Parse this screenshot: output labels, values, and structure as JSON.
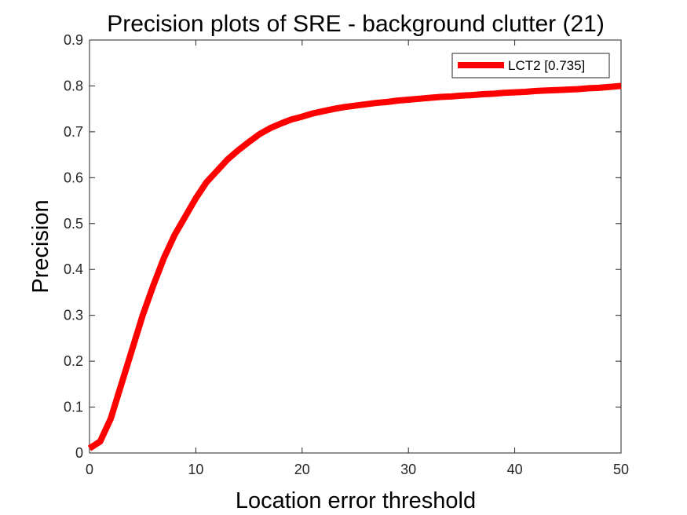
{
  "chart_data": {
    "type": "line",
    "title": "Precision plots of SRE - background clutter (21)",
    "xlabel": "Location error threshold",
    "ylabel": "Precision",
    "xlim": [
      0,
      50
    ],
    "ylim": [
      0,
      0.9
    ],
    "xticks": [
      "0",
      "10",
      "20",
      "30",
      "40",
      "50"
    ],
    "yticks": [
      "0",
      "0.1",
      "0.2",
      "0.3",
      "0.4",
      "0.5",
      "0.6",
      "0.7",
      "0.8",
      "0.9"
    ],
    "grid": false,
    "legend": "top-right",
    "series": [
      {
        "name": "LCT2 [0.735]",
        "color": "#ff0000",
        "x": [
          0,
          1,
          2,
          3,
          4,
          5,
          6,
          7,
          8,
          9,
          10,
          11,
          12,
          13,
          14,
          15,
          16,
          17,
          18,
          19,
          20,
          21,
          22,
          23,
          24,
          25,
          26,
          27,
          28,
          29,
          30,
          31,
          32,
          33,
          34,
          35,
          36,
          37,
          38,
          39,
          40,
          41,
          42,
          43,
          44,
          45,
          46,
          47,
          48,
          49,
          50
        ],
        "y": [
          0.01,
          0.025,
          0.075,
          0.15,
          0.225,
          0.3,
          0.365,
          0.425,
          0.475,
          0.515,
          0.555,
          0.59,
          0.615,
          0.64,
          0.66,
          0.678,
          0.695,
          0.708,
          0.718,
          0.727,
          0.733,
          0.74,
          0.745,
          0.75,
          0.754,
          0.757,
          0.76,
          0.763,
          0.765,
          0.768,
          0.77,
          0.772,
          0.774,
          0.776,
          0.777,
          0.779,
          0.78,
          0.782,
          0.783,
          0.785,
          0.786,
          0.787,
          0.789,
          0.79,
          0.791,
          0.792,
          0.793,
          0.795,
          0.796,
          0.798,
          0.8
        ]
      }
    ]
  }
}
